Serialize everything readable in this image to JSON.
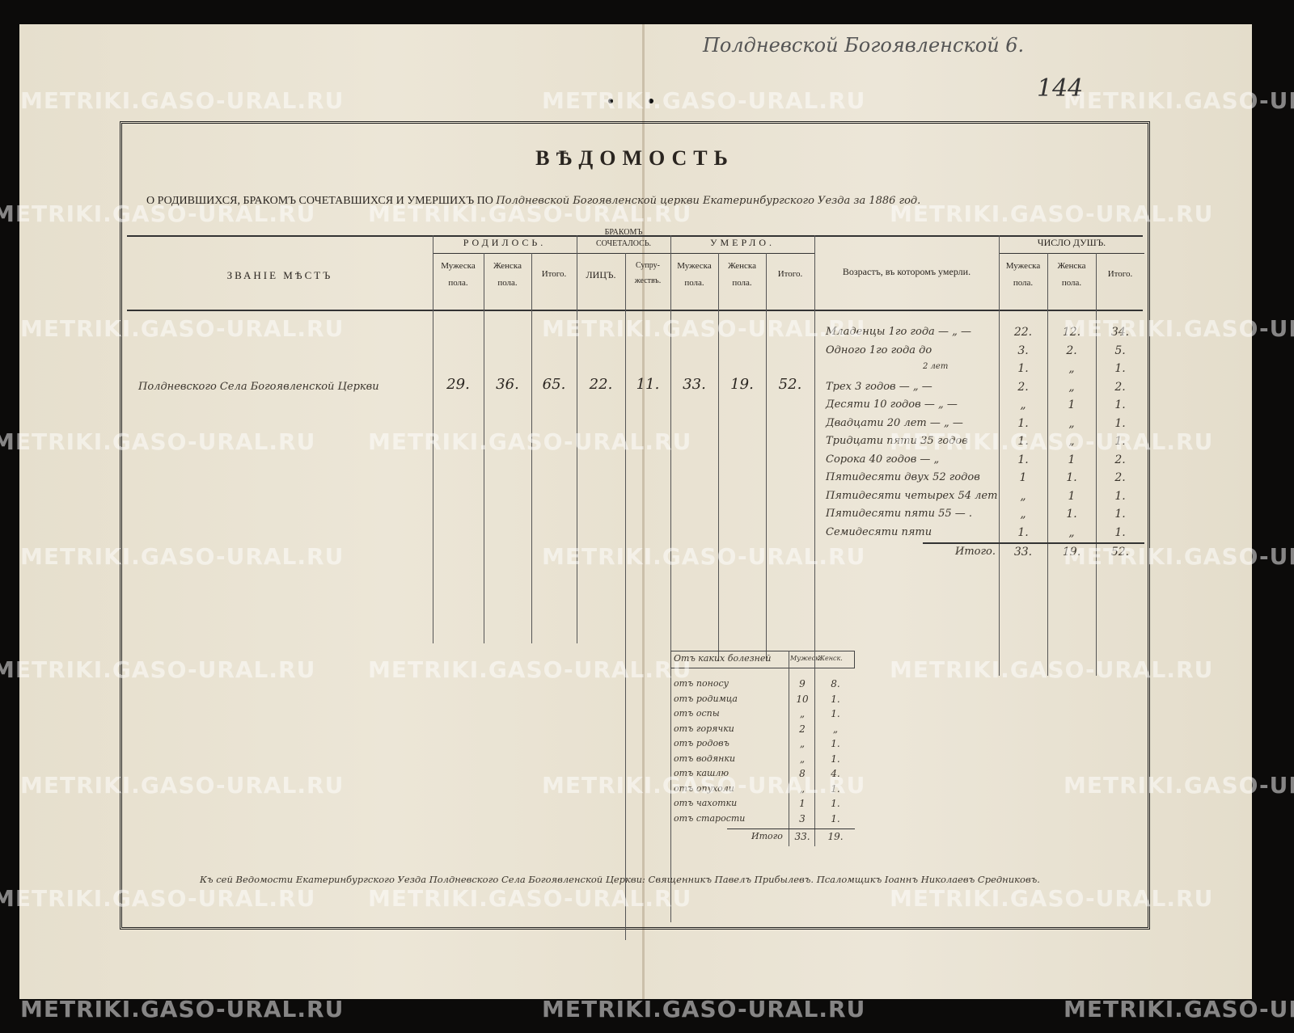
{
  "archive_note": {
    "handwritten_header": "Полдневской Богоявленской 6.",
    "folio": "144"
  },
  "watermark": "METRIKI.GASO-URAL.RU",
  "title": "ВѢДОМОСТЬ",
  "subtitle_printed": "О РОДИВШИХСЯ, БРАКОМЪ СОЧЕТАВШИХСЯ И УМЕРШИХЪ ПО",
  "subtitle_handwritten": "Полдневской Богоявленской церкви Екатеринбургского Уезда за 1886 год.",
  "headers": {
    "place": "ЗВАНІЕ МѢСТЪ",
    "born": "РОДИЛОСЬ.",
    "married": "БРАКОМЪ СОЧЕТАЛОСЬ.",
    "died": "УМЕРЛО.",
    "age": "Возрастъ, въ которомъ умерли.",
    "souls": "ЧИСЛО ДУШЪ.",
    "male": "Мужеска пола.",
    "female": "Женска пола.",
    "total": "Итого.",
    "persons": "ЛИЦЪ.",
    "couples": "Супру-жествъ."
  },
  "main_row": {
    "place": "Полдневского Села Богоявленской Церкви",
    "born_m": "29.",
    "born_f": "36.",
    "born_total": "65.",
    "married_persons": "22.",
    "married_couples": "11.",
    "died_m": "33.",
    "died_f": "19.",
    "died_total": "52."
  },
  "ages": [
    {
      "label": "Младенцы 1го года — „ —",
      "m": "22.",
      "f": "12.",
      "t": "34."
    },
    {
      "label": "Одного 1го года до",
      "m": "3.",
      "f": "2.",
      "t": "5."
    },
    {
      "label": "2 лет",
      "m": "1.",
      "f": "„",
      "t": "1."
    },
    {
      "label": "Трех 3 годов — „ —",
      "m": "2.",
      "f": "„",
      "t": "2."
    },
    {
      "label": "Десяти 10 годов — „ —",
      "m": "„",
      "f": "1",
      "t": "1."
    },
    {
      "label": "Двадцати 20 лет — „ —",
      "m": "1.",
      "f": "„",
      "t": "1."
    },
    {
      "label": "Тридцати пяти 35 годов",
      "m": "1.",
      "f": "„",
      "t": "1."
    },
    {
      "label": "Сорока 40 годов — „",
      "m": "1.",
      "f": "1",
      "t": "2."
    },
    {
      "label": "Пятидесяти двух 52 годов",
      "m": "1",
      "f": "1.",
      "t": "2."
    },
    {
      "label": "Пятидесяти четырех 54 лет",
      "m": "„",
      "f": "1",
      "t": "1."
    },
    {
      "label": "Пятидесяти пяти 55 — .",
      "m": "„",
      "f": "1.",
      "t": "1."
    },
    {
      "label": "Семидесяти пяти",
      "m": "1.",
      "f": "„",
      "t": "1."
    }
  ],
  "ages_total": {
    "label": "Итого.",
    "m": "33.",
    "f": "19.",
    "t": "52."
  },
  "diseases": {
    "header": "Отъ каких болезней",
    "male": "Мужеск.",
    "female": "Женск.",
    "rows": [
      {
        "label": "отъ поносу",
        "m": "9",
        "f": "8."
      },
      {
        "label": "отъ родимца",
        "m": "10",
        "f": "1."
      },
      {
        "label": "отъ оспы",
        "m": "„",
        "f": "1."
      },
      {
        "label": "отъ горячки",
        "m": "2",
        "f": "„"
      },
      {
        "label": "отъ родовъ",
        "m": "„",
        "f": "1."
      },
      {
        "label": "отъ водянки",
        "m": "„",
        "f": "1."
      },
      {
        "label": "отъ кашлю",
        "m": "8",
        "f": "4."
      },
      {
        "label": "отъ опухоли",
        "m": "„",
        "f": "1."
      },
      {
        "label": "отъ чахотки",
        "m": "1",
        "f": "1."
      },
      {
        "label": "отъ старости",
        "m": "3",
        "f": "1."
      }
    ],
    "total": {
      "label": "Итого",
      "m": "33.",
      "f": "19."
    }
  },
  "signature": "Къ сей Ведомости Екатеринбургского Уезда Полдневского Села Богоявленской Церкви: Священникъ Павелъ Прибылевъ. Псаломщикъ Іоаннъ Николаевъ Средниковъ."
}
